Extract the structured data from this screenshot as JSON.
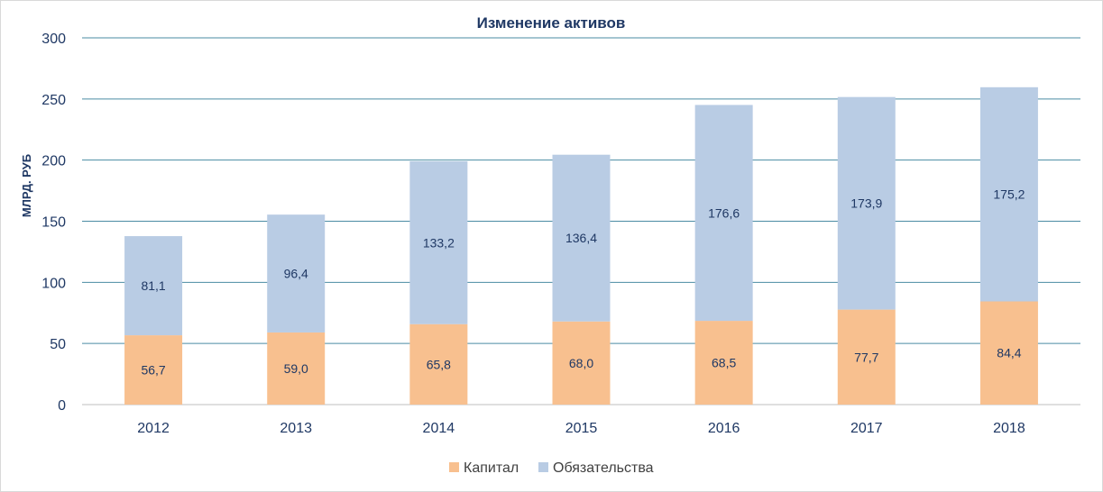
{
  "chart_data": {
    "type": "bar",
    "stacked": true,
    "title": "Изменение активов",
    "ylabel": "МЛРД. РУБ",
    "xlabel": "",
    "categories": [
      "2012",
      "2013",
      "2014",
      "2015",
      "2016",
      "2017",
      "2018"
    ],
    "series": [
      {
        "name": "Капитал",
        "color": "#f8c08f",
        "values": [
          56.7,
          59.0,
          65.8,
          68.0,
          68.5,
          77.7,
          84.4
        ],
        "labels": [
          "56,7",
          "59,0",
          "65,8",
          "68,0",
          "68,5",
          "77,7",
          "84,4"
        ]
      },
      {
        "name": "Обязательства",
        "color": "#b9cce4",
        "values": [
          81.1,
          96.4,
          133.2,
          136.4,
          176.6,
          173.9,
          175.2
        ],
        "labels": [
          "81,1",
          "96,4",
          "133,2",
          "136,4",
          "176,6",
          "173,9",
          "175,2"
        ]
      }
    ],
    "ylim": [
      0,
      300
    ],
    "yticks": [
      0,
      50,
      100,
      150,
      200,
      250,
      300
    ],
    "grid": true,
    "gridline_color": "#4a8ba3",
    "text_color": "#1f3864",
    "legend_position": "bottom"
  }
}
